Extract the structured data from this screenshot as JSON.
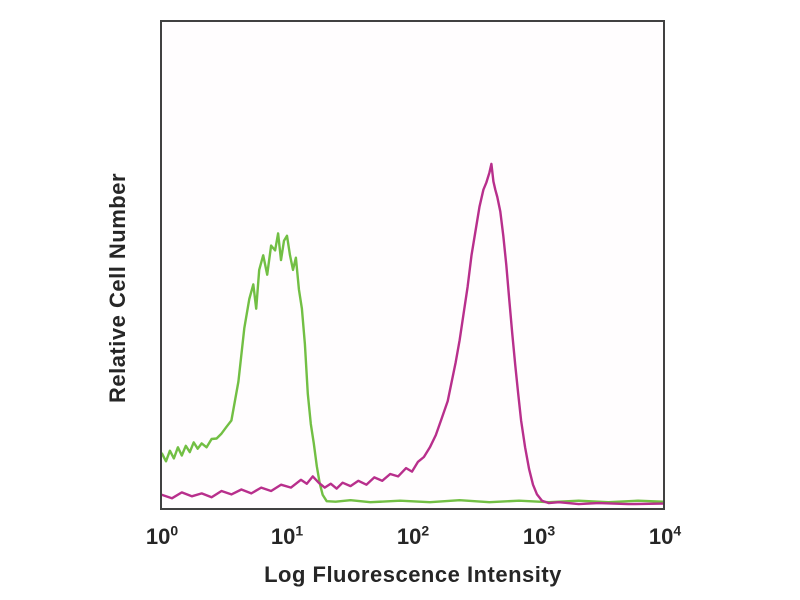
{
  "colors": {
    "background": "#ffffff",
    "plot_border": "#414141",
    "text": "#262626",
    "green_series": "#72bf44",
    "magenta_series": "#b82f8c"
  },
  "chart_data": {
    "type": "line",
    "title": "",
    "xlabel": "Log Fluorescence Intensity",
    "ylabel": "Relative Cell Number",
    "x_scale": "log10",
    "xlim_log": [
      0,
      4
    ],
    "ylim": [
      0,
      1
    ],
    "grid": false,
    "legend_position": "none",
    "x_ticks": [
      {
        "base": "10",
        "exp": "0"
      },
      {
        "base": "10",
        "exp": "1"
      },
      {
        "base": "10",
        "exp": "2"
      },
      {
        "base": "10",
        "exp": "3"
      },
      {
        "base": "10",
        "exp": "4"
      }
    ],
    "series": [
      {
        "name": "green",
        "color": "#72bf44",
        "peak_log_x": 0.93,
        "peak_height": 0.565,
        "points": [
          [
            0.0,
            0.112
          ],
          [
            0.032,
            0.096
          ],
          [
            0.063,
            0.118
          ],
          [
            0.095,
            0.102
          ],
          [
            0.127,
            0.125
          ],
          [
            0.158,
            0.108
          ],
          [
            0.19,
            0.128
          ],
          [
            0.222,
            0.115
          ],
          [
            0.253,
            0.135
          ],
          [
            0.285,
            0.122
          ],
          [
            0.317,
            0.133
          ],
          [
            0.356,
            0.125
          ],
          [
            0.396,
            0.142
          ],
          [
            0.436,
            0.143
          ],
          [
            0.475,
            0.153
          ],
          [
            0.515,
            0.167
          ],
          [
            0.554,
            0.18
          ],
          [
            0.61,
            0.26
          ],
          [
            0.657,
            0.37
          ],
          [
            0.697,
            0.43
          ],
          [
            0.729,
            0.46
          ],
          [
            0.752,
            0.41
          ],
          [
            0.776,
            0.49
          ],
          [
            0.808,
            0.52
          ],
          [
            0.84,
            0.48
          ],
          [
            0.871,
            0.54
          ],
          [
            0.903,
            0.53
          ],
          [
            0.927,
            0.565
          ],
          [
            0.95,
            0.51
          ],
          [
            0.974,
            0.55
          ],
          [
            0.998,
            0.56
          ],
          [
            1.022,
            0.52
          ],
          [
            1.046,
            0.49
          ],
          [
            1.069,
            0.515
          ],
          [
            1.093,
            0.45
          ],
          [
            1.117,
            0.41
          ],
          [
            1.141,
            0.337
          ],
          [
            1.164,
            0.235
          ],
          [
            1.188,
            0.173
          ],
          [
            1.212,
            0.133
          ],
          [
            1.236,
            0.086
          ],
          [
            1.259,
            0.051
          ],
          [
            1.283,
            0.027
          ],
          [
            1.315,
            0.014
          ],
          [
            1.386,
            0.013
          ],
          [
            1.505,
            0.016
          ],
          [
            1.663,
            0.012
          ],
          [
            1.901,
            0.015
          ],
          [
            2.139,
            0.012
          ],
          [
            2.376,
            0.016
          ],
          [
            2.614,
            0.012
          ],
          [
            2.851,
            0.015
          ],
          [
            3.089,
            0.012
          ],
          [
            3.327,
            0.015
          ],
          [
            3.564,
            0.012
          ],
          [
            3.802,
            0.015
          ],
          [
            4.0,
            0.013
          ]
        ]
      },
      {
        "name": "magenta",
        "color": "#b82f8c",
        "peak_log_x": 2.63,
        "peak_height": 0.708,
        "points": [
          [
            0.0,
            0.027
          ],
          [
            0.079,
            0.02
          ],
          [
            0.158,
            0.032
          ],
          [
            0.238,
            0.024
          ],
          [
            0.317,
            0.03
          ],
          [
            0.396,
            0.022
          ],
          [
            0.475,
            0.035
          ],
          [
            0.554,
            0.028
          ],
          [
            0.634,
            0.038
          ],
          [
            0.713,
            0.03
          ],
          [
            0.792,
            0.042
          ],
          [
            0.871,
            0.035
          ],
          [
            0.95,
            0.048
          ],
          [
            1.03,
            0.042
          ],
          [
            1.109,
            0.058
          ],
          [
            1.156,
            0.05
          ],
          [
            1.204,
            0.065
          ],
          [
            1.251,
            0.052
          ],
          [
            1.299,
            0.042
          ],
          [
            1.347,
            0.05
          ],
          [
            1.394,
            0.04
          ],
          [
            1.442,
            0.052
          ],
          [
            1.505,
            0.045
          ],
          [
            1.568,
            0.056
          ],
          [
            1.632,
            0.048
          ],
          [
            1.695,
            0.063
          ],
          [
            1.758,
            0.056
          ],
          [
            1.822,
            0.07
          ],
          [
            1.885,
            0.065
          ],
          [
            1.949,
            0.082
          ],
          [
            1.996,
            0.075
          ],
          [
            2.044,
            0.095
          ],
          [
            2.091,
            0.105
          ],
          [
            2.139,
            0.125
          ],
          [
            2.186,
            0.15
          ],
          [
            2.234,
            0.185
          ],
          [
            2.281,
            0.22
          ],
          [
            2.313,
            0.26
          ],
          [
            2.345,
            0.3
          ],
          [
            2.376,
            0.345
          ],
          [
            2.408,
            0.4
          ],
          [
            2.44,
            0.455
          ],
          [
            2.471,
            0.52
          ],
          [
            2.503,
            0.57
          ],
          [
            2.535,
            0.62
          ],
          [
            2.566,
            0.655
          ],
          [
            2.59,
            0.67
          ],
          [
            2.614,
            0.69
          ],
          [
            2.63,
            0.708
          ],
          [
            2.646,
            0.672
          ],
          [
            2.661,
            0.655
          ],
          [
            2.677,
            0.64
          ],
          [
            2.701,
            0.61
          ],
          [
            2.725,
            0.56
          ],
          [
            2.749,
            0.5
          ],
          [
            2.772,
            0.43
          ],
          [
            2.796,
            0.36
          ],
          [
            2.82,
            0.295
          ],
          [
            2.844,
            0.235
          ],
          [
            2.867,
            0.18
          ],
          [
            2.899,
            0.125
          ],
          [
            2.931,
            0.08
          ],
          [
            2.962,
            0.048
          ],
          [
            2.994,
            0.028
          ],
          [
            3.034,
            0.015
          ],
          [
            3.089,
            0.01
          ],
          [
            3.168,
            0.012
          ],
          [
            3.327,
            0.008
          ],
          [
            3.485,
            0.01
          ],
          [
            3.723,
            0.008
          ],
          [
            4.0,
            0.009
          ]
        ]
      }
    ]
  }
}
